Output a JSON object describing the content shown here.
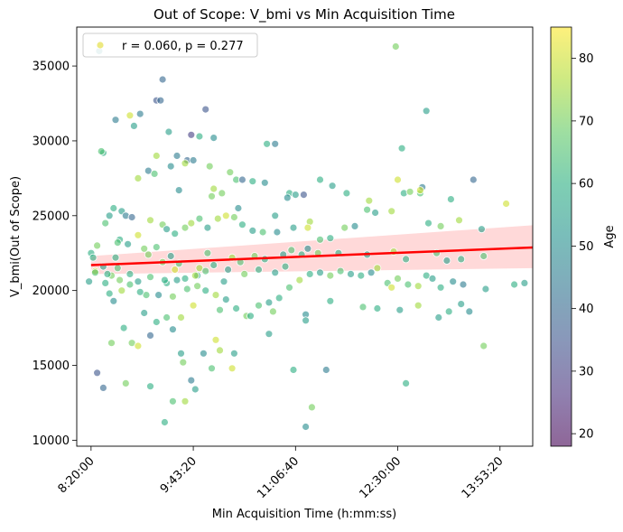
{
  "chart_data": {
    "type": "scatter",
    "title": "Out of Scope: V_bmi vs Min Acquisition Time",
    "xlabel": "Min Acquisition Time (h:mm:ss)",
    "ylabel": "V_bmi(Out of Scope)",
    "x_unit": "seconds since midnight",
    "xlim": [
      29300,
      51600
    ],
    "ylim": [
      9600,
      37600
    ],
    "x_ticks": [
      {
        "value": 30000,
        "label": "8:20:00"
      },
      {
        "value": 35000,
        "label": "9:43:20"
      },
      {
        "value": 40000,
        "label": "11:06:40"
      },
      {
        "value": 45000,
        "label": "12:30:00"
      },
      {
        "value": 50000,
        "label": "13:53:20"
      }
    ],
    "y_ticks": [
      10000,
      15000,
      20000,
      25000,
      30000,
      35000
    ],
    "y_tick_labels": [
      "10000",
      "15000",
      "20000",
      "25000",
      "30000",
      "35000"
    ],
    "legend": {
      "label": "r = 0.060, p = 0.277",
      "position": "top-left",
      "marker_color": "#e6e04a"
    },
    "colorbar": {
      "label": "Age",
      "min": 18,
      "max": 85,
      "ticks": [
        20,
        30,
        40,
        50,
        60,
        70,
        80
      ],
      "tick_labels": [
        "20",
        "30",
        "40",
        "50",
        "60",
        "70",
        "80"
      ],
      "colormap": "viridis"
    },
    "regression": {
      "x": [
        30000,
        52000
      ],
      "y": [
        21700,
        22900
      ],
      "ci_lower_start": 21100,
      "ci_upper_start": 22300,
      "ci_lower_end": 21500,
      "ci_upper_end": 24400,
      "color": "#ff0000",
      "band_color": "#ffb3b3"
    },
    "points": [
      [
        30400,
        36000,
        50
      ],
      [
        33500,
        34100,
        40
      ],
      [
        33200,
        32700,
        35
      ],
      [
        33400,
        32700,
        40
      ],
      [
        35600,
        32100,
        35
      ],
      [
        32400,
        31800,
        45
      ],
      [
        31900,
        31700,
        80
      ],
      [
        32100,
        31000,
        55
      ],
      [
        36000,
        30200,
        50
      ],
      [
        34900,
        30400,
        30
      ],
      [
        35300,
        30300,
        60
      ],
      [
        34700,
        28700,
        40
      ],
      [
        35000,
        28700,
        45
      ],
      [
        35800,
        28300,
        70
      ],
      [
        34600,
        28500,
        75
      ],
      [
        36800,
        27900,
        70
      ],
      [
        37100,
        27400,
        65
      ],
      [
        37400,
        27400,
        40
      ],
      [
        37900,
        27300,
        60
      ],
      [
        38500,
        27200,
        50
      ],
      [
        36000,
        26800,
        75
      ],
      [
        36400,
        26500,
        70
      ],
      [
        39700,
        26500,
        60
      ],
      [
        40000,
        26400,
        55
      ],
      [
        40400,
        26400,
        35
      ],
      [
        39600,
        26200,
        50
      ],
      [
        33200,
        29000,
        75
      ],
      [
        33800,
        30600,
        55
      ],
      [
        34200,
        29000,
        45
      ],
      [
        33900,
        28300,
        50
      ],
      [
        31100,
        25500,
        60
      ],
      [
        31500,
        25300,
        55
      ],
      [
        32300,
        27500,
        75
      ],
      [
        32800,
        28000,
        45
      ],
      [
        33100,
        27800,
        65
      ],
      [
        34300,
        26700,
        50
      ],
      [
        35900,
        26300,
        70
      ],
      [
        30600,
        29200,
        60
      ],
      [
        30500,
        29300,
        65
      ],
      [
        30300,
        23000,
        70
      ],
      [
        30000,
        22500,
        60
      ],
      [
        30700,
        24500,
        65
      ],
      [
        30900,
        25000,
        55
      ],
      [
        31700,
        25000,
        45
      ],
      [
        32000,
        24900,
        40
      ],
      [
        31400,
        23400,
        60
      ],
      [
        31800,
        23100,
        55
      ],
      [
        32300,
        23700,
        80
      ],
      [
        32900,
        24700,
        75
      ],
      [
        33500,
        24400,
        70
      ],
      [
        33700,
        24100,
        55
      ],
      [
        34100,
        23800,
        60
      ],
      [
        34600,
        24200,
        70
      ],
      [
        34900,
        24500,
        75
      ],
      [
        35300,
        24800,
        65
      ],
      [
        35700,
        24200,
        55
      ],
      [
        36200,
        24800,
        75
      ],
      [
        36600,
        25000,
        80
      ],
      [
        37000,
        24900,
        70
      ],
      [
        37400,
        24400,
        60
      ],
      [
        37900,
        24000,
        55
      ],
      [
        38400,
        23900,
        65
      ],
      [
        39100,
        23900,
        50
      ],
      [
        39900,
        24200,
        55
      ],
      [
        40700,
        24600,
        75
      ],
      [
        40600,
        24200,
        80
      ],
      [
        41200,
        23400,
        65
      ],
      [
        41700,
        23500,
        60
      ],
      [
        42400,
        24200,
        70
      ],
      [
        42900,
        24300,
        50
      ],
      [
        43500,
        25400,
        65
      ],
      [
        43900,
        25200,
        55
      ],
      [
        44700,
        25300,
        75
      ],
      [
        45300,
        26500,
        60
      ],
      [
        45600,
        26600,
        70
      ],
      [
        46100,
        26500,
        65
      ],
      [
        46200,
        26900,
        45
      ],
      [
        46100,
        26700,
        80
      ],
      [
        46500,
        24500,
        60
      ],
      [
        47100,
        24300,
        70
      ],
      [
        47600,
        26100,
        60
      ],
      [
        48000,
        24700,
        75
      ],
      [
        48700,
        27400,
        40
      ],
      [
        49100,
        24100,
        55
      ],
      [
        50300,
        25800,
        80
      ],
      [
        31200,
        31400,
        45
      ],
      [
        30700,
        20500,
        60
      ],
      [
        30600,
        21600,
        55
      ],
      [
        31000,
        21000,
        70
      ],
      [
        31300,
        21500,
        65
      ],
      [
        31500,
        20000,
        75
      ],
      [
        31100,
        19300,
        50
      ],
      [
        31600,
        17500,
        60
      ],
      [
        32000,
        16500,
        70
      ],
      [
        32300,
        16300,
        80
      ],
      [
        32600,
        18500,
        55
      ],
      [
        32900,
        17000,
        40
      ],
      [
        33200,
        17900,
        60
      ],
      [
        33700,
        18200,
        65
      ],
      [
        34000,
        17400,
        50
      ],
      [
        34400,
        15800,
        55
      ],
      [
        34500,
        15200,
        70
      ],
      [
        34900,
        14000,
        45
      ],
      [
        35500,
        15800,
        50
      ],
      [
        35900,
        14800,
        65
      ],
      [
        36300,
        16000,
        75
      ],
      [
        37000,
        15800,
        55
      ],
      [
        36100,
        16700,
        80
      ],
      [
        36900,
        14800,
        80
      ],
      [
        38700,
        17100,
        55
      ],
      [
        39900,
        14700,
        60
      ],
      [
        41500,
        14700,
        45
      ],
      [
        40800,
        12200,
        70
      ],
      [
        40500,
        10900,
        50
      ],
      [
        33600,
        11200,
        60
      ],
      [
        34000,
        12600,
        65
      ],
      [
        34600,
        12600,
        75
      ],
      [
        35100,
        13400,
        55
      ],
      [
        31700,
        13800,
        70
      ],
      [
        32900,
        13600,
        60
      ],
      [
        30300,
        14500,
        35
      ],
      [
        30600,
        13500,
        40
      ],
      [
        31000,
        16500,
        70
      ],
      [
        30900,
        19800,
        60
      ],
      [
        32700,
        19700,
        65
      ],
      [
        33300,
        19700,
        50
      ],
      [
        33700,
        20500,
        60
      ],
      [
        34200,
        20700,
        55
      ],
      [
        34700,
        20100,
        65
      ],
      [
        35200,
        20300,
        70
      ],
      [
        35600,
        20000,
        60
      ],
      [
        36100,
        19700,
        75
      ],
      [
        36600,
        19400,
        55
      ],
      [
        37100,
        18800,
        60
      ],
      [
        37600,
        18300,
        70
      ],
      [
        38200,
        19000,
        65
      ],
      [
        38700,
        19200,
        55
      ],
      [
        39200,
        19500,
        60
      ],
      [
        39700,
        20200,
        65
      ],
      [
        40200,
        20700,
        75
      ],
      [
        40700,
        21100,
        60
      ],
      [
        41200,
        21200,
        55
      ],
      [
        41700,
        21000,
        70
      ],
      [
        42200,
        21300,
        65
      ],
      [
        42700,
        21100,
        55
      ],
      [
        43200,
        21000,
        60
      ],
      [
        43700,
        21200,
        50
      ],
      [
        44000,
        21500,
        75
      ],
      [
        44500,
        20500,
        65
      ],
      [
        44700,
        20200,
        80
      ],
      [
        45000,
        20800,
        70
      ],
      [
        45500,
        20400,
        65
      ],
      [
        46000,
        20300,
        75
      ],
      [
        46400,
        21000,
        60
      ],
      [
        46700,
        20800,
        55
      ],
      [
        47100,
        20200,
        60
      ],
      [
        47700,
        20600,
        50
      ],
      [
        48200,
        20400,
        45
      ],
      [
        49300,
        20100,
        55
      ],
      [
        50700,
        20400,
        60
      ],
      [
        51200,
        20500,
        55
      ],
      [
        33500,
        21900,
        70
      ],
      [
        34300,
        21800,
        65
      ],
      [
        34100,
        21400,
        80
      ],
      [
        35300,
        21500,
        75
      ],
      [
        36000,
        21700,
        60
      ],
      [
        36700,
        21400,
        55
      ],
      [
        37300,
        21900,
        65
      ],
      [
        38000,
        22300,
        70
      ],
      [
        38500,
        22100,
        60
      ],
      [
        39400,
        22400,
        55
      ],
      [
        39800,
        22700,
        65
      ],
      [
        40300,
        22400,
        60
      ],
      [
        40600,
        22800,
        50
      ],
      [
        41100,
        22500,
        70
      ],
      [
        42100,
        22500,
        60
      ],
      [
        43500,
        22400,
        55
      ],
      [
        44800,
        22600,
        75
      ],
      [
        45400,
        22100,
        60
      ],
      [
        46900,
        22500,
        65
      ],
      [
        47400,
        22000,
        55
      ],
      [
        48100,
        22100,
        60
      ],
      [
        49200,
        22300,
        65
      ],
      [
        30200,
        21300,
        80
      ],
      [
        31200,
        22200,
        60
      ],
      [
        32800,
        22400,
        70
      ],
      [
        33900,
        22300,
        55
      ],
      [
        35700,
        22500,
        65
      ],
      [
        36900,
        22200,
        75
      ],
      [
        31900,
        20400,
        65
      ],
      [
        32400,
        19900,
        60
      ],
      [
        35000,
        19000,
        80
      ],
      [
        34400,
        18200,
        75
      ],
      [
        36300,
        18700,
        65
      ],
      [
        37800,
        18300,
        60
      ],
      [
        38900,
        18600,
        70
      ],
      [
        40500,
        18400,
        50
      ],
      [
        40500,
        18000,
        55
      ],
      [
        41700,
        19300,
        60
      ],
      [
        43300,
        18900,
        65
      ],
      [
        44000,
        18800,
        60
      ],
      [
        45100,
        18700,
        55
      ],
      [
        46000,
        19000,
        75
      ],
      [
        47000,
        18200,
        55
      ],
      [
        47500,
        18600,
        60
      ],
      [
        48100,
        19100,
        55
      ],
      [
        48500,
        18600,
        50
      ],
      [
        49200,
        16300,
        70
      ],
      [
        45400,
        13800,
        60
      ],
      [
        43600,
        26000,
        75
      ],
      [
        45000,
        27400,
        80
      ],
      [
        45200,
        29500,
        60
      ],
      [
        46400,
        32000,
        55
      ],
      [
        42500,
        26500,
        60
      ],
      [
        41800,
        27000,
        55
      ],
      [
        41200,
        27400,
        60
      ],
      [
        38600,
        29800,
        60
      ],
      [
        39000,
        29800,
        45
      ],
      [
        44900,
        36300,
        70
      ],
      [
        39000,
        25000,
        55
      ],
      [
        37200,
        25500,
        50
      ],
      [
        35200,
        21000,
        55
      ],
      [
        33200,
        22900,
        65
      ],
      [
        32600,
        22800,
        70
      ],
      [
        31300,
        23200,
        65
      ],
      [
        30100,
        22200,
        60
      ],
      [
        29900,
        20600,
        55
      ],
      [
        30200,
        21200,
        65
      ],
      [
        30800,
        21100,
        60
      ],
      [
        31400,
        20700,
        70
      ],
      [
        31900,
        21100,
        60
      ],
      [
        32300,
        20600,
        55
      ],
      [
        32900,
        20900,
        65
      ],
      [
        33600,
        20700,
        60
      ],
      [
        34000,
        19600,
        70
      ],
      [
        34600,
        20800,
        60
      ],
      [
        35100,
        21000,
        75
      ],
      [
        35600,
        21300,
        65
      ],
      [
        36500,
        20600,
        55
      ],
      [
        37500,
        21100,
        70
      ],
      [
        38200,
        21400,
        60
      ],
      [
        39000,
        21200,
        55
      ],
      [
        39500,
        21600,
        60
      ]
    ]
  }
}
